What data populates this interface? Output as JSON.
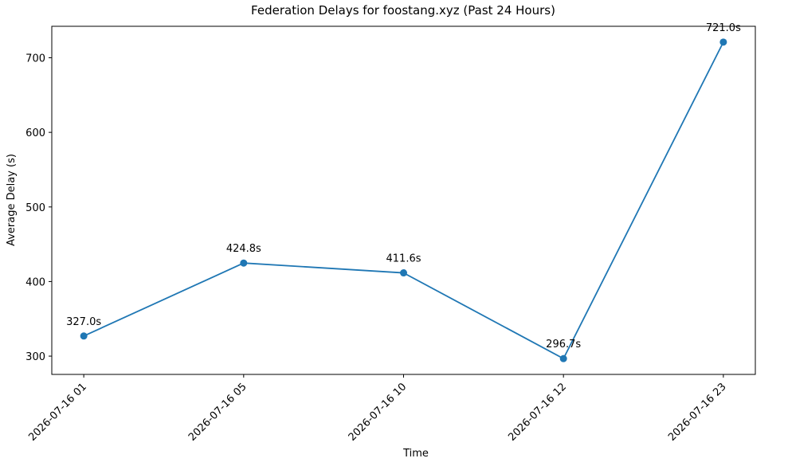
{
  "chart_data": {
    "type": "line",
    "title": "Federation Delays for foostang.xyz (Past 24 Hours)",
    "x_label": "Time",
    "y_label": "Average Delay (s)",
    "categories": [
      "2026-07-16 01",
      "2026-07-16 05",
      "2026-07-16 10",
      "2026-07-16 12",
      "2026-07-16 23"
    ],
    "values": [
      327.0,
      424.8,
      411.6,
      296.7,
      721.0
    ],
    "value_labels": [
      "327.0s",
      "424.8s",
      "411.6s",
      "296.7s",
      "721.0s"
    ],
    "color": "#1f77b4",
    "ylim": [
      275.5,
      742.2
    ],
    "yticks": [
      300,
      400,
      500,
      600,
      700
    ]
  }
}
